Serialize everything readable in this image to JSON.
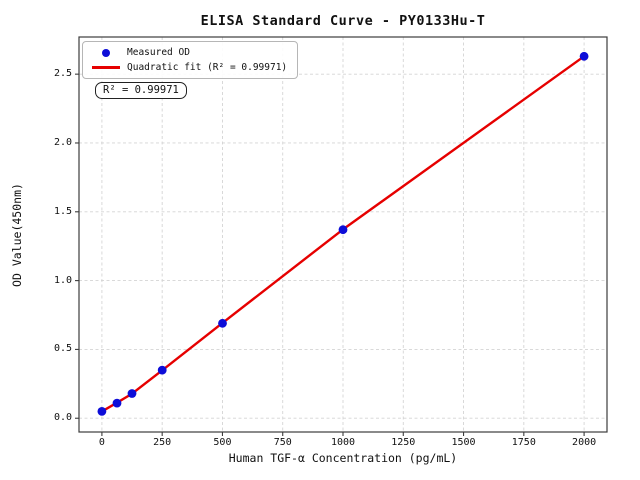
{
  "chart_data": {
    "type": "scatter",
    "title": "ELISA Standard Curve - PY0133Hu-T",
    "xlabel": "Human TGF-α Concentration (pg/mL)",
    "ylabel": "OD Value(450nm)",
    "xlim": [
      -95,
      2095
    ],
    "ylim": [
      -0.1,
      2.77
    ],
    "xticks": [
      "0",
      "250",
      "500",
      "750",
      "1000",
      "1250",
      "1500",
      "1750",
      "2000"
    ],
    "yticks": [
      "0.0",
      "0.5",
      "1.0",
      "1.5",
      "2.0",
      "2.5"
    ],
    "grid": true,
    "legend_position": "upper-left",
    "series": [
      {
        "name": "Measured OD",
        "kind": "scatter",
        "marker": "circle",
        "color": "#0d0dd8",
        "x": [
          0,
          62.5,
          125,
          250,
          500,
          1000,
          2000
        ],
        "y": [
          0.05,
          0.11,
          0.18,
          0.35,
          0.69,
          1.37,
          2.63
        ]
      },
      {
        "name": "Quadratic fit (R² = 0.99971)",
        "kind": "line",
        "color": "#e60000",
        "x": [
          0,
          62.5,
          125,
          250,
          500,
          1000,
          2000
        ],
        "y": [
          0.05,
          0.113,
          0.178,
          0.348,
          0.693,
          1.372,
          2.63
        ]
      }
    ],
    "annotation": "R² = 0.99971",
    "r_squared": "0.99971",
    "colors": {
      "point": "#0d0dd8",
      "line": "#e60000",
      "grid": "#d4d4d4",
      "spine": "#3c3c3c",
      "text": "#111111",
      "background": "#ffffff"
    }
  }
}
